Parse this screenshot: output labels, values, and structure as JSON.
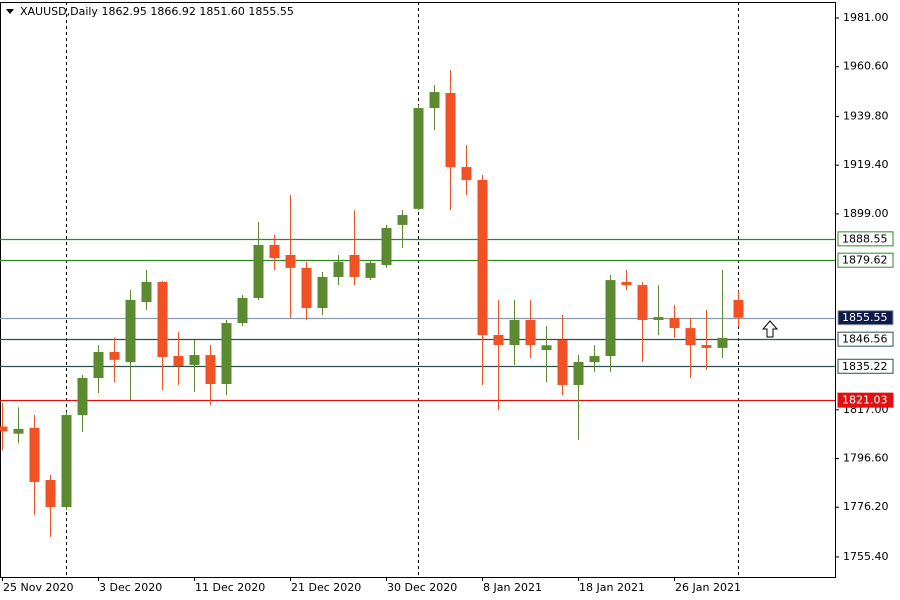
{
  "chart_data": {
    "type": "candlestick",
    "title": "XAUUSD,Daily  1862.95 1866.92 1851.60 1855.55",
    "categories": [
      "25 Nov 2020",
      null,
      null,
      null,
      null,
      null,
      "3 Dec 2020",
      null,
      null,
      null,
      null,
      null,
      "11 Dec 2020",
      null,
      null,
      null,
      null,
      null,
      "21 Dec 2020",
      null,
      null,
      null,
      null,
      null,
      "30 Dec 2020",
      null,
      null,
      null,
      null,
      null,
      "8 Jan 2021",
      null,
      null,
      null,
      null,
      null,
      "18 Jan 2021",
      null,
      null,
      null,
      null,
      null,
      "26 Jan 2021",
      null,
      null,
      null,
      null
    ],
    "open": [
      1810,
      1807,
      1809.4,
      1787.6,
      1776.3,
      1814.8,
      1830.3,
      1841.2,
      1837.0,
      1862.1,
      1870.5,
      1839.5,
      1835.8,
      1839.9,
      1827.8,
      1853.3,
      1863.8,
      1886.0,
      1881.8,
      1876.4,
      1859.6,
      1872.6,
      1881.8,
      1872.2,
      1877.6,
      1894.4,
      1901.1,
      1943.3,
      1949.6,
      1918.6,
      1913.2,
      1848.3,
      1844.1,
      1854.6,
      1842,
      1846.2,
      1827.4,
      1837.0,
      1839.5,
      1870.5,
      1869.2,
      1854.6,
      1855.4,
      1851.2,
      1844.1,
      1842.9,
      1862.95
    ],
    "high": [
      1820,
      1818,
      1814.8,
      1789.7,
      1816,
      1831.6,
      1844.1,
      1847.1,
      1867.2,
      1875.5,
      1871,
      1849.6,
      1846.2,
      1844.1,
      1854.6,
      1865.1,
      1895.6,
      1890.2,
      1906.9,
      1878.9,
      1874.7,
      1881.8,
      1900.6,
      1879.7,
      1894.4,
      1900.6,
      1944.6,
      1953.0,
      1959.2,
      1927.8,
      1915.3,
      1863.0,
      1863.0,
      1863.0,
      1852,
      1856.7,
      1840.0,
      1844.1,
      1873.4,
      1875.5,
      1870.5,
      1869.2,
      1860.9,
      1855.4,
      1858.8,
      1875.5,
      1866.92
    ],
    "low": [
      1800,
      1803,
      1773.0,
      1763.8,
      1775,
      1807.7,
      1824.0,
      1828.6,
      1821.1,
      1858.8,
      1825.3,
      1827.4,
      1824.5,
      1819.0,
      1823.2,
      1852,
      1863,
      1875.5,
      1855.4,
      1854.6,
      1856.7,
      1869.2,
      1869.2,
      1871.3,
      1876.4,
      1884.7,
      1900.6,
      1934.1,
      1900.6,
      1906.9,
      1827.4,
      1816.9,
      1835.8,
      1838.7,
      1828.6,
      1823.2,
      1804.4,
      1832.8,
      1832.8,
      1867.1,
      1837.0,
      1848.3,
      1847.1,
      1830.3,
      1833.7,
      1838.7,
      1851.6
    ],
    "close": [
      1808,
      1809,
      1786.8,
      1776.3,
      1814.8,
      1830.3,
      1841.2,
      1837.9,
      1863.0,
      1870.5,
      1839.1,
      1835.3,
      1839.9,
      1827.8,
      1853.3,
      1863.8,
      1886.0,
      1880.5,
      1876.4,
      1859.6,
      1872.6,
      1878.9,
      1872.6,
      1878.5,
      1893.1,
      1898.5,
      1943.3,
      1950.0,
      1918.6,
      1913.2,
      1848.3,
      1844.1,
      1854.6,
      1844.1,
      1844,
      1827.4,
      1837.0,
      1839.5,
      1871.3,
      1869.2,
      1854.6,
      1855.8,
      1851.2,
      1844.1,
      1842.9,
      1847.1,
      1855.55
    ],
    "up_color": "#5b8a30",
    "down_color": "#f05226",
    "ylim": [
      1747.0,
      1987.7
    ],
    "yticks": [
      {
        "value": 1981,
        "label": "1981.00"
      },
      {
        "value": 1960.6,
        "label": "1960.60"
      },
      {
        "value": 1939.8,
        "label": "1939.80"
      },
      {
        "value": 1919.4,
        "label": "1919.40"
      },
      {
        "value": 1899,
        "label": "1899.00"
      },
      {
        "value": 1817,
        "label": "1817.00"
      },
      {
        "value": 1796.6,
        "label": "1796.60"
      },
      {
        "value": 1776.2,
        "label": "1776.20"
      },
      {
        "value": 1755.4,
        "label": "1755.40"
      }
    ],
    "levels": [
      {
        "value": 1888.55,
        "color": "#2e8b22",
        "label_fill": "#ffffff",
        "label_text": "#000000"
      },
      {
        "value": 1879.62,
        "color": "#2e8b22",
        "label_fill": "#ffffff",
        "label_text": "#000000"
      },
      {
        "value": 1855.55,
        "color": "#8a9aa8",
        "label_fill": "#0e1a4a",
        "label_text": "#ffffff"
      },
      {
        "value": 1846.56,
        "color": "#2f4f4f",
        "label_fill": "#ffffff",
        "label_text": "#000000"
      },
      {
        "value": 1835.22,
        "color": "#2f4f4f",
        "label_fill": "#ffffff",
        "label_text": "#000000"
      },
      {
        "value": 1821.03,
        "color": "#e01010",
        "label_fill": "#e01010",
        "label_text": "#ffffff"
      }
    ]
  }
}
